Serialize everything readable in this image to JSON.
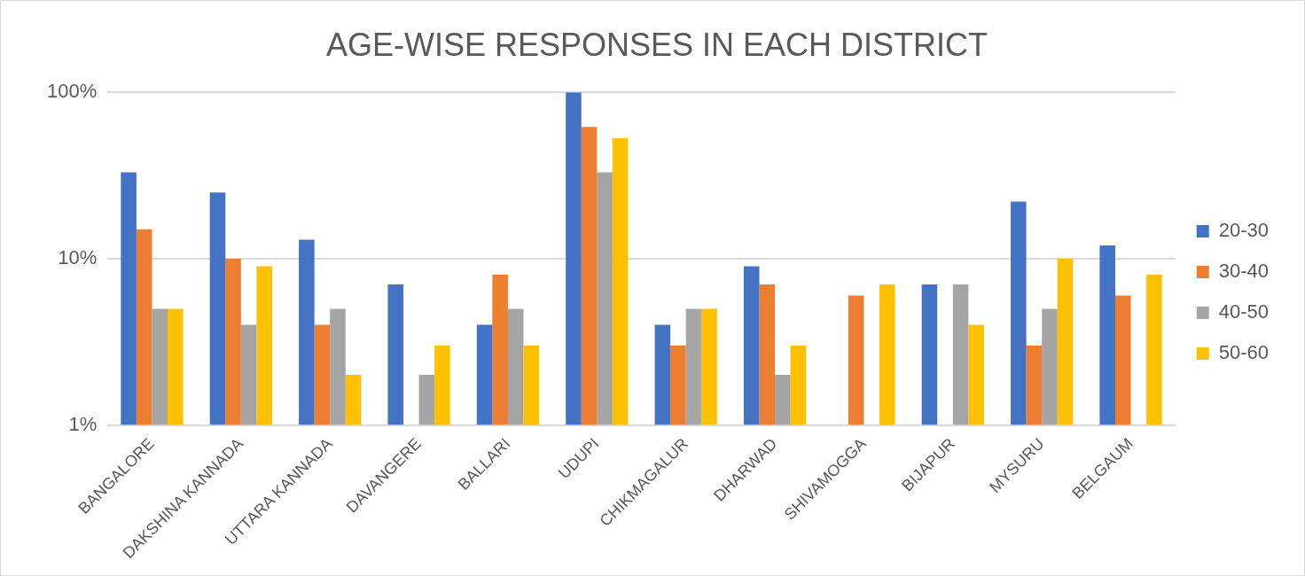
{
  "chart_data": {
    "type": "bar",
    "title": "AGE-WISE RESPONSES IN EACH DISTRICT",
    "categories": [
      "BANGALORE",
      "DAKSHINA KANNADA",
      "UTTARA KANNADA",
      "DAVANGERE",
      "BALLARI",
      "UDUPI",
      "CHIKMAGALUR",
      "DHARWAD",
      "SHIVAMOGGA",
      "BIJAPUR",
      "MYSURU",
      "BELGAUM"
    ],
    "series": [
      {
        "name": "20-30",
        "color": "#4472c4",
        "values": [
          33,
          25,
          13,
          7,
          4,
          100,
          4,
          9,
          null,
          7,
          22,
          12
        ]
      },
      {
        "name": "30-40",
        "color": "#ed7d31",
        "values": [
          15,
          10,
          4,
          null,
          8,
          62,
          3,
          7,
          6,
          null,
          3,
          6
        ]
      },
      {
        "name": "40-50",
        "color": "#a5a5a5",
        "values": [
          5,
          4,
          5,
          2,
          5,
          33,
          5,
          2,
          null,
          7,
          5,
          null
        ]
      },
      {
        "name": "50-60",
        "color": "#ffc000",
        "values": [
          5,
          9,
          2,
          3,
          3,
          53,
          5,
          3,
          7,
          4,
          10,
          8
        ]
      }
    ],
    "log": "y",
    "ylim": [
      1,
      100
    ],
    "yticks": [
      {
        "value": 1,
        "label": "1%"
      },
      {
        "value": 10,
        "label": "10%"
      },
      {
        "value": 100,
        "label": "100%"
      }
    ],
    "grid": "y",
    "legend": "right"
  }
}
